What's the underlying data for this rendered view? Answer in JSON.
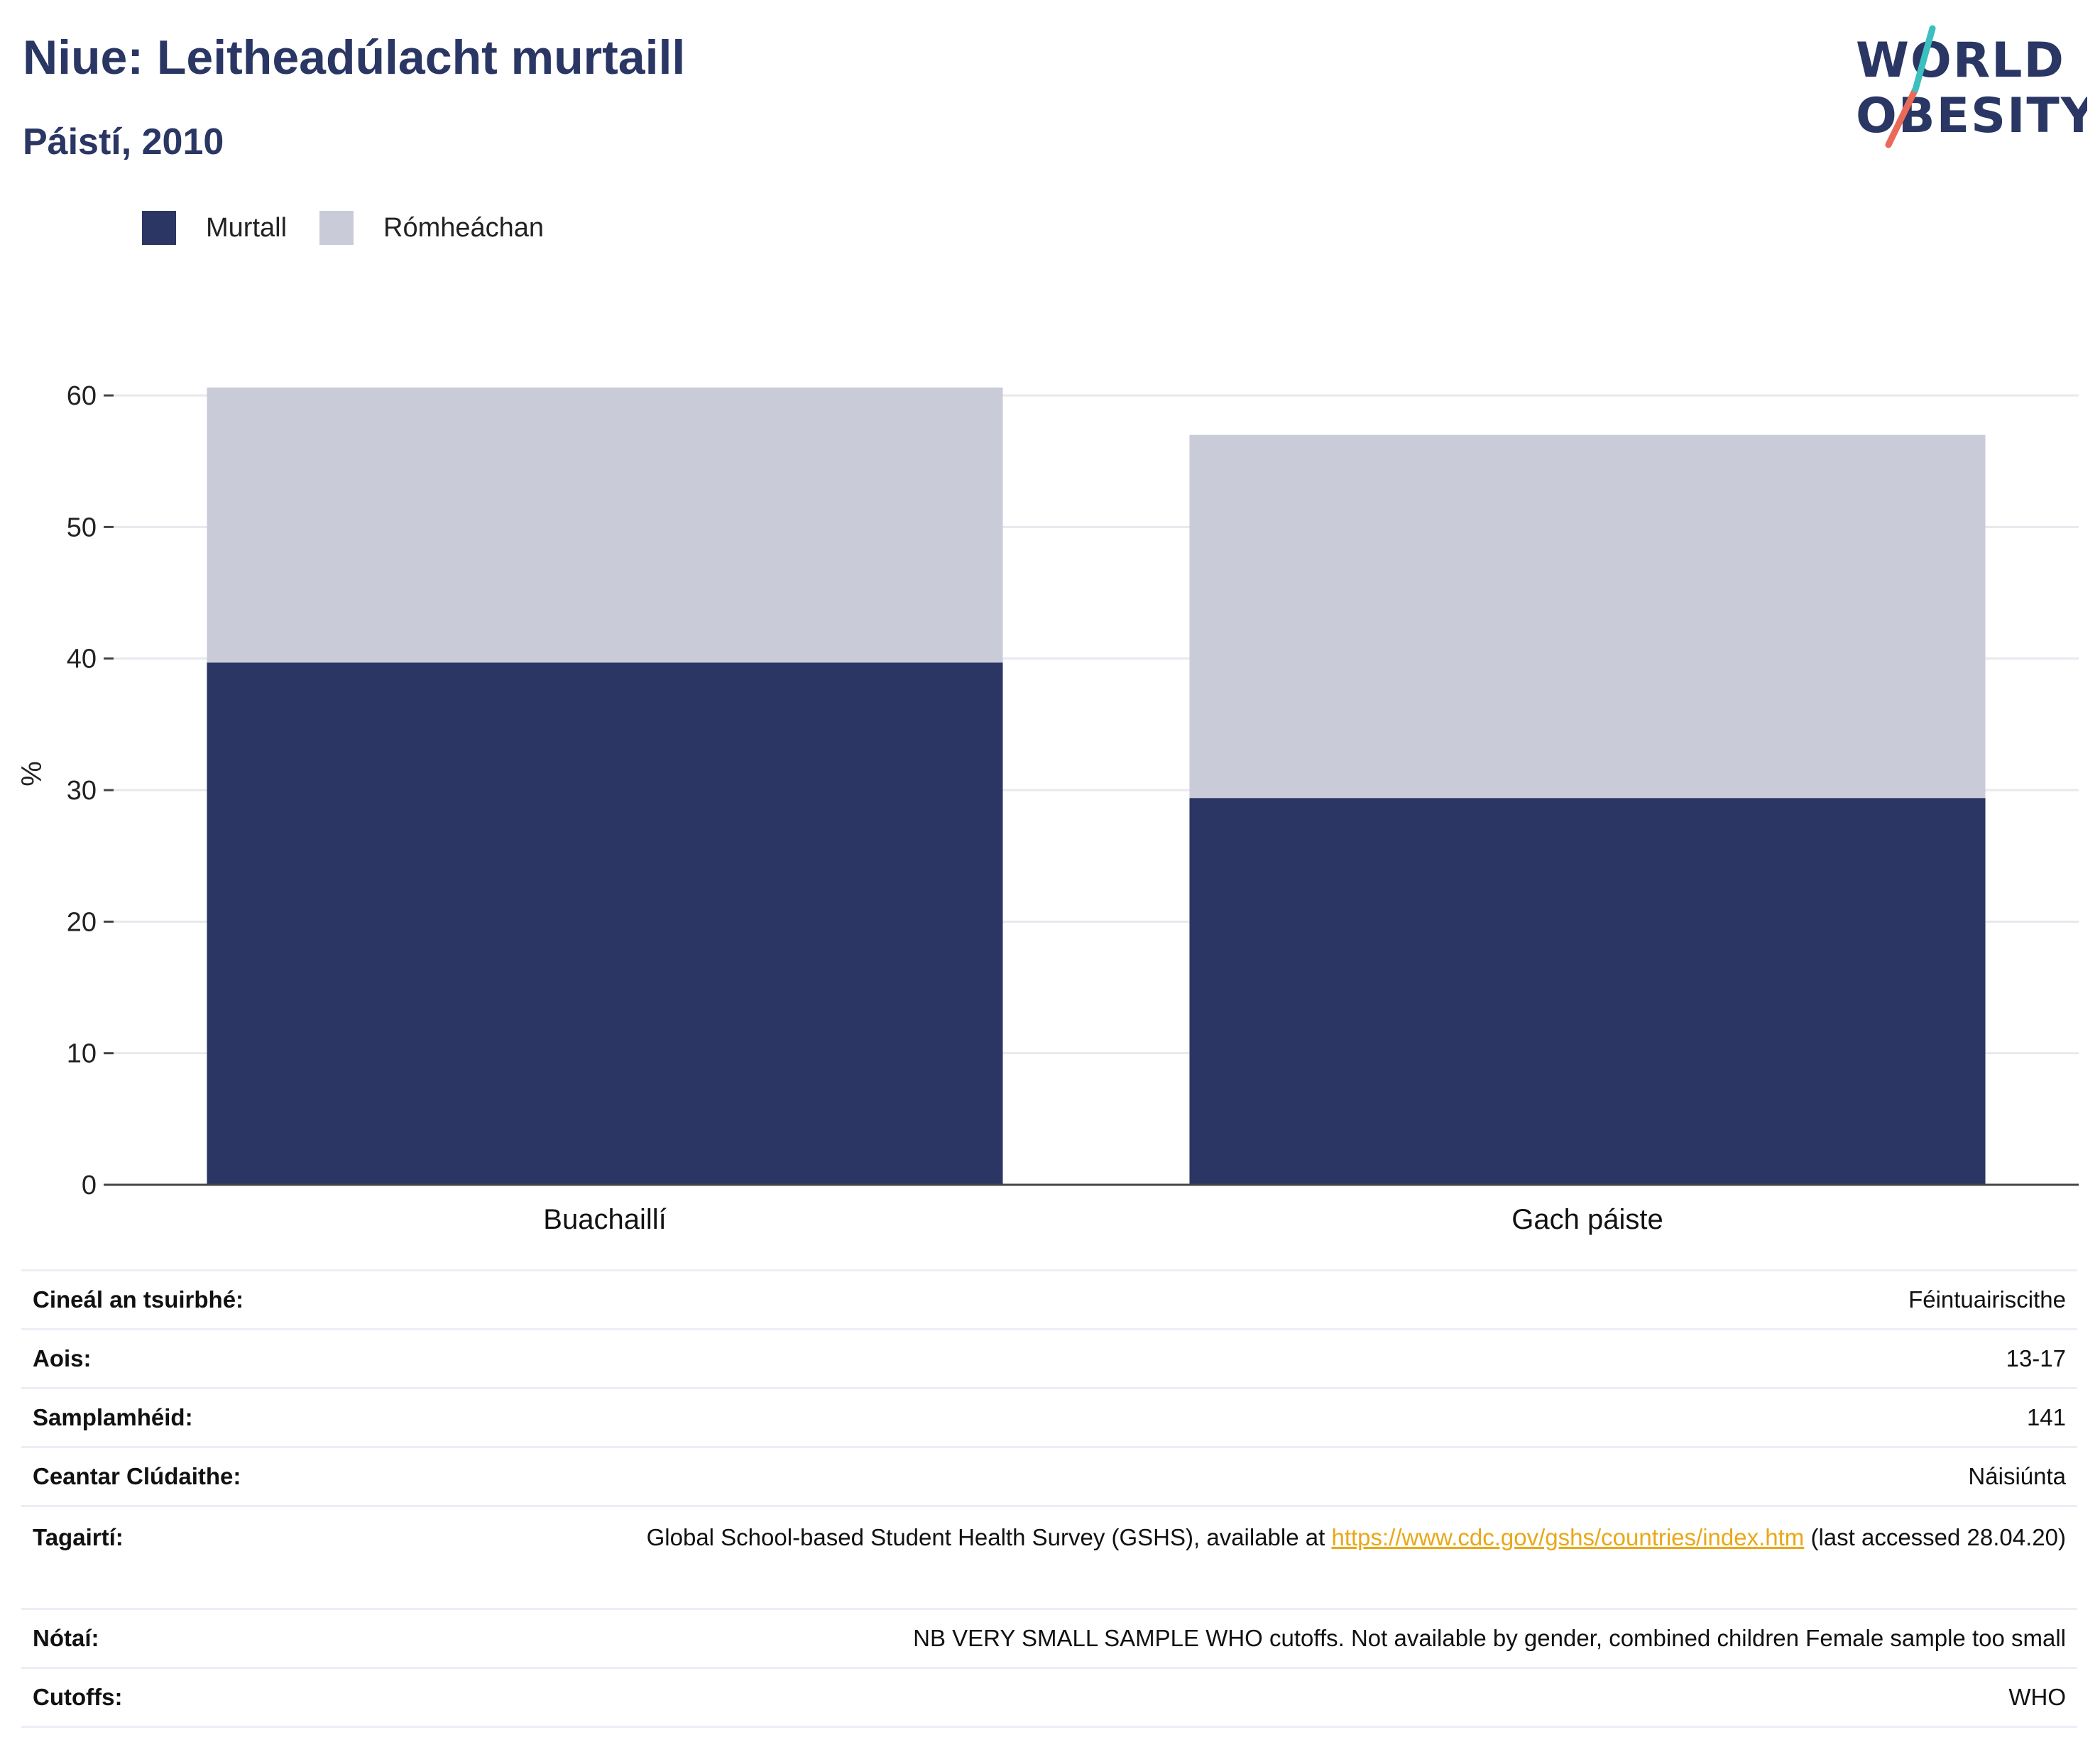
{
  "header": {
    "title": "Niue: Leitheadúlacht murtaill",
    "subtitle": "Páistí, 2010"
  },
  "logo": {
    "line1": "WORLD",
    "line2": "OBESITY"
  },
  "colors": {
    "murtall": "#2b3664",
    "romheachan": "#c9ccd8",
    "heading": "#2a3663",
    "link": "#e8a818"
  },
  "chart_data": {
    "type": "bar",
    "stacked": true,
    "categories": [
      "Buachaillí",
      "Gach páiste"
    ],
    "series": [
      {
        "name": "Murtall",
        "values": [
          39.7,
          29.4
        ]
      },
      {
        "name": "Rómheáchan",
        "values": [
          20.9,
          27.6
        ]
      }
    ],
    "ylabel": "%",
    "ylim": [
      0,
      62
    ],
    "yticks": [
      0,
      10,
      20,
      30,
      40,
      50,
      60
    ],
    "grid": true,
    "legend": "top-left"
  },
  "info": {
    "rows": [
      {
        "label": "Cineál an tsuirbhé:",
        "value": "Féintuairiscithe"
      },
      {
        "label": "Aois:",
        "value": "13-17"
      },
      {
        "label": "Samplamhéid:",
        "value": "141"
      },
      {
        "label": "Ceantar Clúdaithe:",
        "value": "Náisiúnta"
      }
    ],
    "references": {
      "label": "Tagairtí:",
      "before": "Global School-based Student Health Survey (GSHS), available at ",
      "link": "https://www.cdc.gov/gshs/countries/index.htm",
      "after": " (last accessed 28.04.20)"
    },
    "notes": {
      "label": "Nótaí:",
      "value": "NB VERY SMALL SAMPLE WHO cutoffs. Not available by gender, combined children Female sample too small"
    },
    "cutoffs": {
      "label": "Cutoffs:",
      "value": "WHO"
    }
  }
}
